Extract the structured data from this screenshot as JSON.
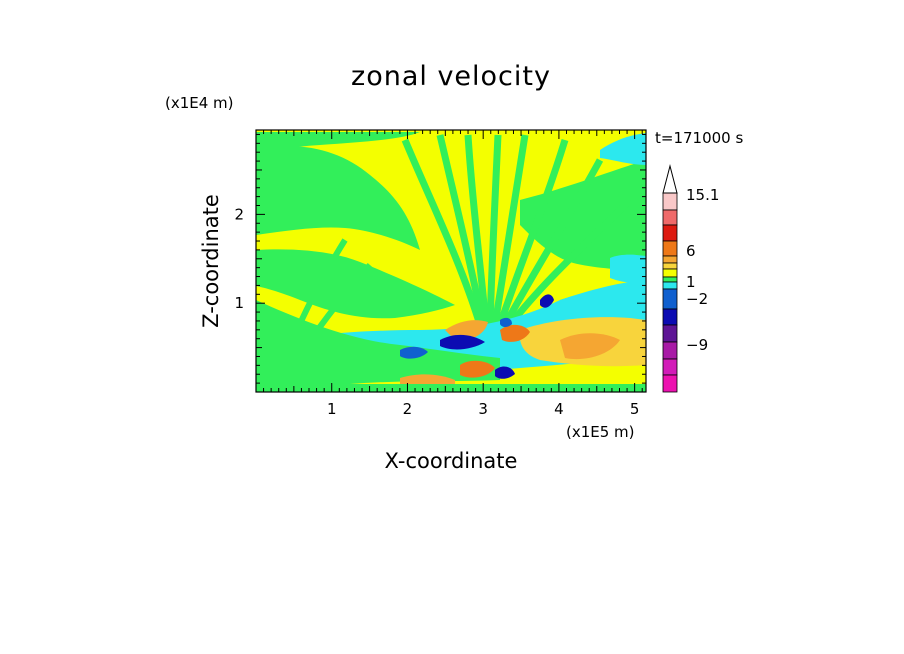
{
  "chart_data": {
    "type": "heatmap",
    "title": "zonal velocity",
    "xlabel": "X-coordinate",
    "ylabel": "Z-coordinate",
    "x_unit": "(x1E5 m)",
    "y_unit": "(x1E4 m)",
    "time_label": "t=171000 s",
    "xlim": [
      0,
      5.15
    ],
    "ylim": [
      0,
      2.95
    ],
    "x_ticks": [
      1,
      2,
      3,
      4,
      5
    ],
    "x_tick_labels": [
      "1",
      "2",
      "3",
      "4",
      "5"
    ],
    "y_ticks": [
      1,
      2
    ],
    "y_tick_labels": [
      "1",
      "2"
    ],
    "colorbar": {
      "labeled_levels": [
        15.1,
        6,
        1,
        -2,
        -9
      ],
      "labels": [
        "15.1",
        "6",
        "1",
        "-2",
        "-9"
      ],
      "colors_top_to_bottom": [
        "#f9c8c8",
        "#ef6a6a",
        "#dd1a10",
        "#ee7818",
        "#f5a632",
        "#f8d43c",
        "#f4ff00",
        "#32ef5a",
        "#2ce8ee",
        "#1060cf",
        "#0c0cb2",
        "#5e1595",
        "#a81aa6",
        "#d21cb8",
        "#ec12b0"
      ]
    }
  }
}
